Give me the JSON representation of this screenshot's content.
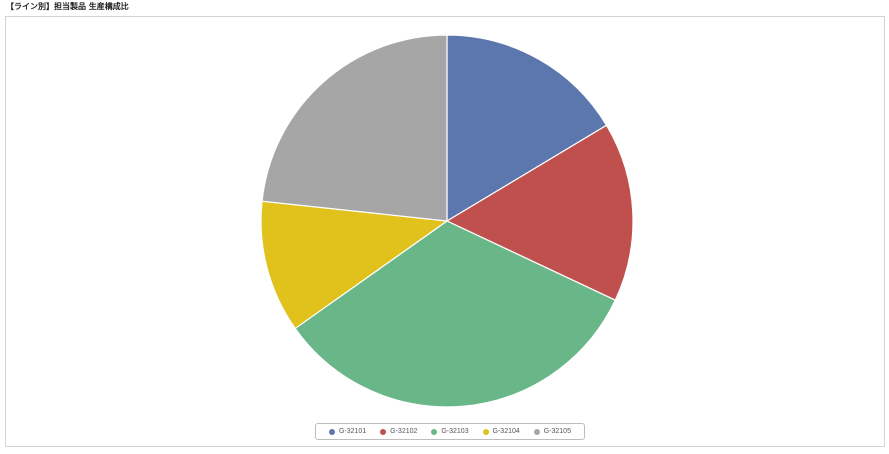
{
  "page": {
    "title": "【ライン別】担当製品 生産構成比"
  },
  "chart_data": {
    "type": "pie",
    "title": "",
    "legend": "bottom-center",
    "slices": [
      {
        "label": "G-32101",
        "value": 16.4,
        "color": "#5b77ae"
      },
      {
        "label": "G-32102",
        "value": 15.6,
        "color": "#c0504d"
      },
      {
        "label": "G-32103",
        "value": 33.2,
        "color": "#69b789"
      },
      {
        "label": "G-32104",
        "value": 11.5,
        "color": "#e1c21d"
      },
      {
        "label": "G-32105",
        "value": 23.3,
        "color": "#a6a6a6"
      }
    ]
  }
}
